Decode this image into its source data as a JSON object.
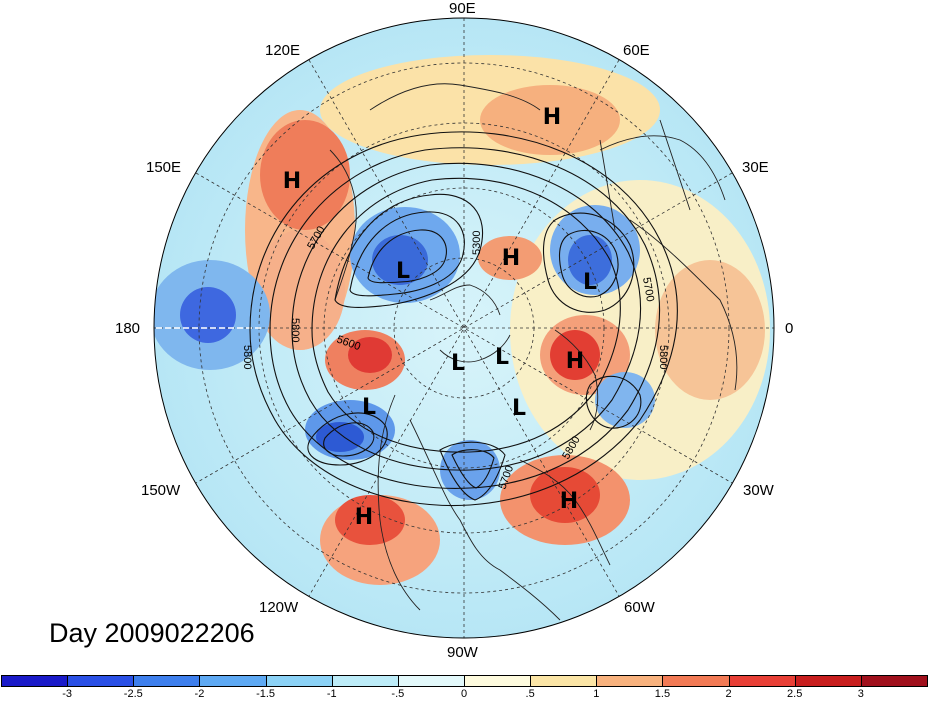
{
  "title": "Day 2009022206",
  "longitude_labels": {
    "lon_90E": "90E",
    "lon_120E": "120E",
    "lon_60E": "60E",
    "lon_150E": "150E",
    "lon_30E": "30E",
    "lon_180": "180",
    "lon_0": "0",
    "lon_150W": "150W",
    "lon_30W": "30W",
    "lon_120W": "120W",
    "lon_60W": "60W",
    "lon_90W": "90W"
  },
  "contour_labels": [
    "5300",
    "5700",
    "5700",
    "5700",
    "5800",
    "5800",
    "5800",
    "5800",
    "5600"
  ],
  "pressure_centers": [
    {
      "symbol": "H",
      "name": "high-center-east-asia"
    },
    {
      "symbol": "H",
      "name": "high-center-siberia-north"
    },
    {
      "symbol": "H",
      "name": "high-center-arctic-siberia"
    },
    {
      "symbol": "L",
      "name": "low-center-east-siberia"
    },
    {
      "symbol": "L",
      "name": "low-center-scandinavia"
    },
    {
      "symbol": "L",
      "name": "low-center-arctic-1"
    },
    {
      "symbol": "L",
      "name": "low-center-arctic-2"
    },
    {
      "symbol": "L",
      "name": "low-center-greenland"
    },
    {
      "symbol": "L",
      "name": "low-center-alaska"
    },
    {
      "symbol": "H",
      "name": "high-center-north-atlantic"
    },
    {
      "symbol": "H",
      "name": "high-center-central-atlantic"
    },
    {
      "symbol": "H",
      "name": "high-center-east-pacific"
    }
  ],
  "colorbar": {
    "ticks": [
      "-3",
      "-2.5",
      "-2",
      "-1.5",
      "-1",
      "-.5",
      "0",
      ".5",
      "1",
      "1.5",
      "2",
      "2.5",
      "3"
    ],
    "colors": [
      "#1a1ac9",
      "#2a50e6",
      "#3e7fed",
      "#5ea9f3",
      "#8cd2f6",
      "#bdecf8",
      "#e3f9fb",
      "#fefbde",
      "#fbe5a6",
      "#f8b27e",
      "#f27a55",
      "#e83f36",
      "#c81e1e",
      "#a0101c"
    ]
  },
  "colors": {
    "land_outline": "#222222",
    "contour": "#111111",
    "grid": "#333333"
  }
}
